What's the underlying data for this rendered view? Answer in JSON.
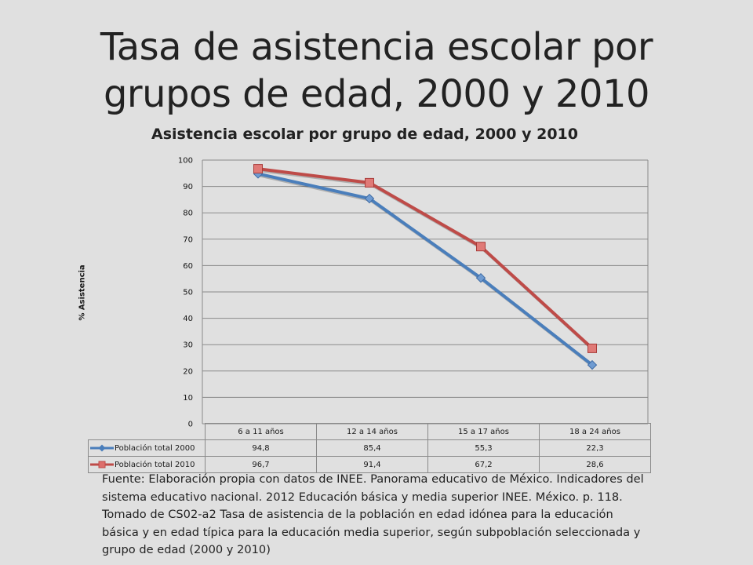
{
  "slide": {
    "title": "Tasa de asistencia escolar por grupos de edad, 2000 y 2010",
    "source": "Fuente: Elaboración propia con datos de INEE. Panorama educativo de México. Indicadores del sistema educativo nacional. 2012 Educación básica y media superior INEE. México. p. 118. Tomado de CS02-a2 Tasa de asistencia de la población en edad idónea para la educación básica y en edad típica  para la educación media superior, según subpoblación seleccionada y grupo de edad (2000 y 2010)"
  },
  "chart_data": {
    "type": "line",
    "title": "Asistencia escolar por grupo de edad, 2000 y 2010",
    "xlabel": "",
    "ylabel": "% Asistencia",
    "ylim": [
      0,
      100
    ],
    "yticks": [
      0,
      10,
      20,
      30,
      40,
      50,
      60,
      70,
      80,
      90,
      100
    ],
    "grid": true,
    "data_table": true,
    "categories": [
      "6 a 11 años",
      "12 a 14 años",
      "15 a 17 años",
      "18 a 24 años"
    ],
    "series": [
      {
        "name": "Población total 2000",
        "values": [
          94.8,
          85.4,
          55.3,
          22.3
        ],
        "labels": [
          "94,8",
          "85,4",
          "55,3",
          "22,3"
        ],
        "color": "#4a7ebb",
        "marker": "diamond"
      },
      {
        "name": "Población total 2010",
        "values": [
          96.7,
          91.4,
          67.2,
          28.6
        ],
        "labels": [
          "96,7",
          "91,4",
          "67,2",
          "28,6"
        ],
        "color": "#be4b48",
        "marker": "square"
      }
    ]
  }
}
